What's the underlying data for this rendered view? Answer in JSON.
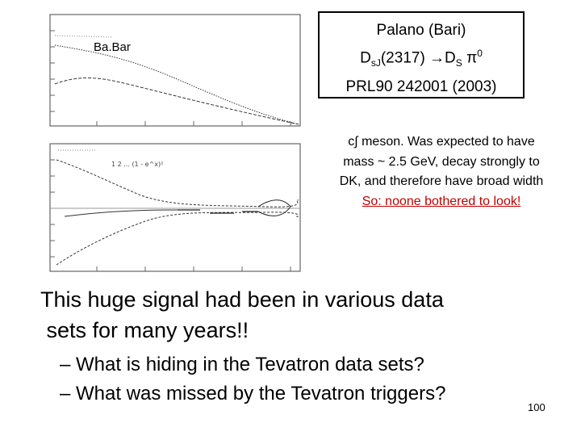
{
  "slide": {
    "plot_label": "Ba.Bar",
    "reference": {
      "line1": "Palano (Bari)",
      "line2_main": "D",
      "line2_sub": "sJ",
      "line2_rest": "(2317) →D",
      "line2_sub2": "S",
      "line2_pi": " π",
      "line2_sup": "0",
      "line3": "PRL90 242001 (2003)"
    },
    "description": {
      "line1": "c∫ meson.  Was expected to have",
      "line2": "mass ~ 2.5 GeV, decay strongly to",
      "line3": "DK, and therefore have broad width",
      "highlight": "So: noone bothered to look!"
    },
    "main_statement": {
      "line1": "This huge signal had been in various data",
      "line2": " sets for many years!!"
    },
    "bullets": [
      "– What is hiding in the Tevatron data sets?",
      "– What was missed by the Tevatron triggers?"
    ],
    "page_number": "100"
  }
}
